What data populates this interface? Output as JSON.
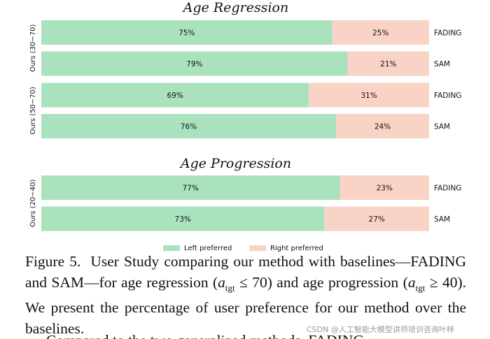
{
  "chart_data": {
    "type": "bar",
    "orientation": "horizontal",
    "stacked": true,
    "value_unit": "%",
    "colors": {
      "left": "#abe2be",
      "right": "#f9d3c6"
    },
    "legend": {
      "left": "Left preferred",
      "right": "Right preferred",
      "placement": "bottom-center"
    },
    "sections": [
      {
        "title": "Age Regression",
        "groups": [
          {
            "label": "Ours (30~70)",
            "bars": [
              {
                "baseline": "FADING",
                "left": 75,
                "right": 25
              },
              {
                "baseline": "SAM",
                "left": 79,
                "right": 21
              }
            ]
          },
          {
            "label": "Ours (50~70)",
            "bars": [
              {
                "baseline": "FADING",
                "left": 69,
                "right": 31
              },
              {
                "baseline": "SAM",
                "left": 76,
                "right": 24
              }
            ]
          }
        ]
      },
      {
        "title": "Age Progression",
        "groups": [
          {
            "label": "Ours (20~40)",
            "bars": [
              {
                "baseline": "FADING",
                "left": 77,
                "right": 23
              },
              {
                "baseline": "SAM",
                "left": 73,
                "right": 27
              }
            ]
          }
        ]
      }
    ]
  },
  "caption": {
    "lead": "Figure 5.",
    "text": "User Study comparing our method with baselines—FADING and SAM—for age regression (a_tgt ≤ 70) and age progression (a_tgt ≥ 40). We present the percentage of user preference for our method over the baselines.",
    "next_line": "Compared to the two generalized methods, FADING"
  },
  "watermark": "CSDN @人工智能大模型讲师培训咨询叶梓"
}
